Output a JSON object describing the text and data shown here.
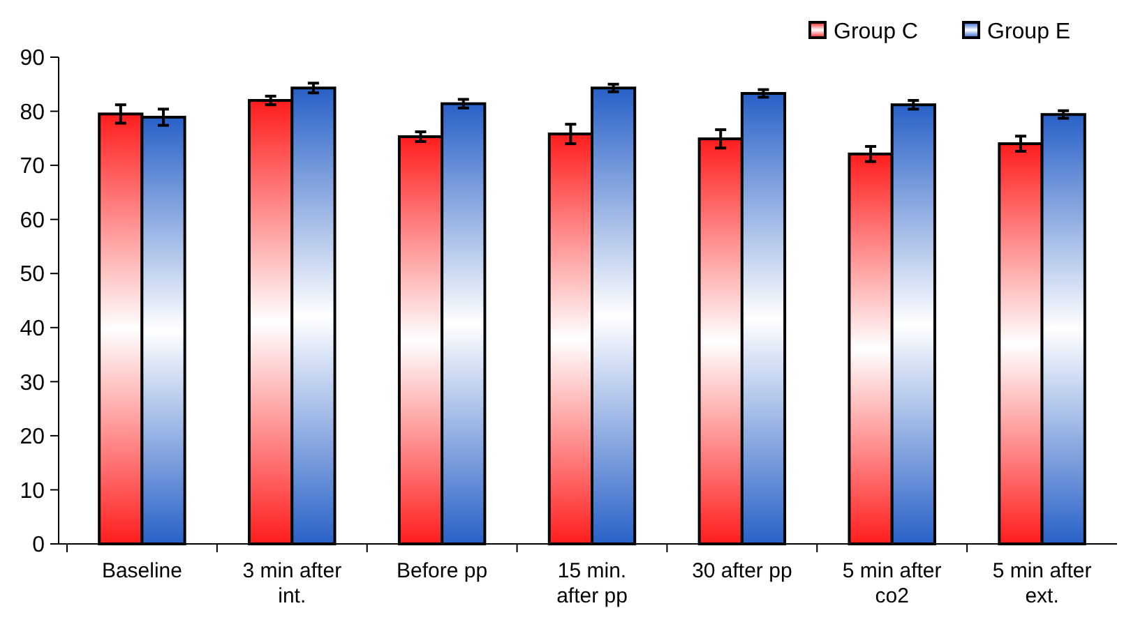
{
  "chart_data": {
    "type": "bar",
    "categories": [
      "Baseline",
      "3 min after int.",
      "Before pp",
      "15 min. after pp",
      "30 after pp",
      "5 min after co2",
      "5 min after ext."
    ],
    "series": [
      {
        "name": "Group C",
        "color": "#ff1f1f",
        "values": [
          79.5,
          82.0,
          75.3,
          75.8,
          74.9,
          72.1,
          74.0
        ],
        "errors": [
          1.7,
          0.8,
          0.9,
          1.8,
          1.7,
          1.4,
          1.4
        ]
      },
      {
        "name": "Group E",
        "color": "#2a62c8",
        "values": [
          78.9,
          84.3,
          81.4,
          84.3,
          83.3,
          81.2,
          79.4
        ],
        "errors": [
          1.5,
          0.9,
          0.8,
          0.7,
          0.7,
          0.8,
          0.7
        ]
      }
    ],
    "ylim": [
      0,
      90
    ],
    "yticks": [
      0,
      10,
      20,
      30,
      40,
      50,
      60,
      70,
      80,
      90
    ],
    "legend": "top right",
    "grid": false
  }
}
